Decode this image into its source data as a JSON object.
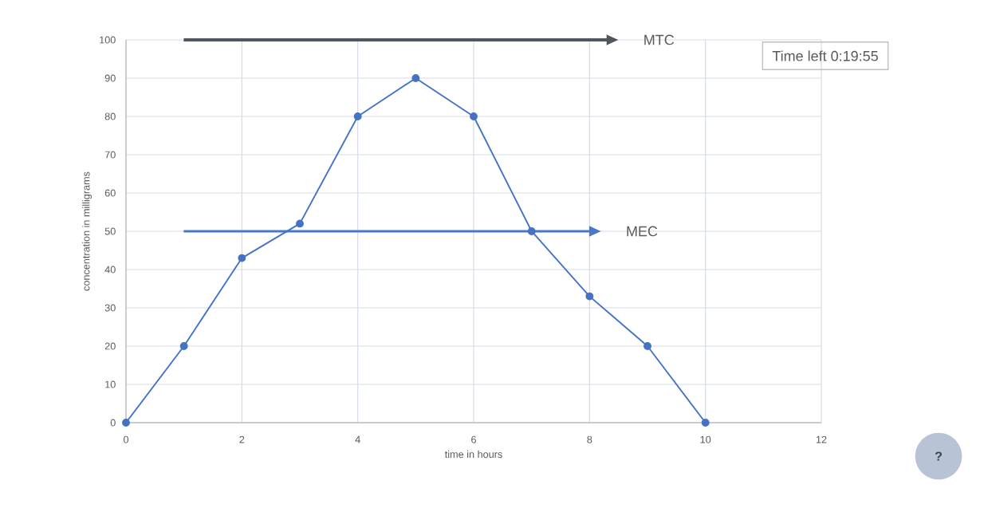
{
  "chart_data": {
    "type": "line",
    "xlabel": "time in hours",
    "ylabel": "concentration in milligrams",
    "x": [
      0,
      1,
      2,
      3,
      4,
      5,
      6,
      7,
      8,
      9,
      10
    ],
    "series": [
      {
        "color": "#4472c4",
        "values": [
          0,
          20,
          43,
          52,
          80,
          90,
          80,
          50,
          33,
          20,
          0
        ]
      }
    ],
    "xlim": [
      0,
      12
    ],
    "ylim": [
      0,
      100
    ],
    "xticks": [
      0,
      2,
      4,
      6,
      8,
      10,
      12
    ],
    "yticks": [
      0,
      10,
      20,
      30,
      40,
      50,
      60,
      70,
      80,
      90,
      100
    ],
    "grid": true,
    "marker": "circle",
    "annotations": [
      "MTC",
      "MEC",
      "Time left 0:19:55",
      "?"
    ]
  }
}
